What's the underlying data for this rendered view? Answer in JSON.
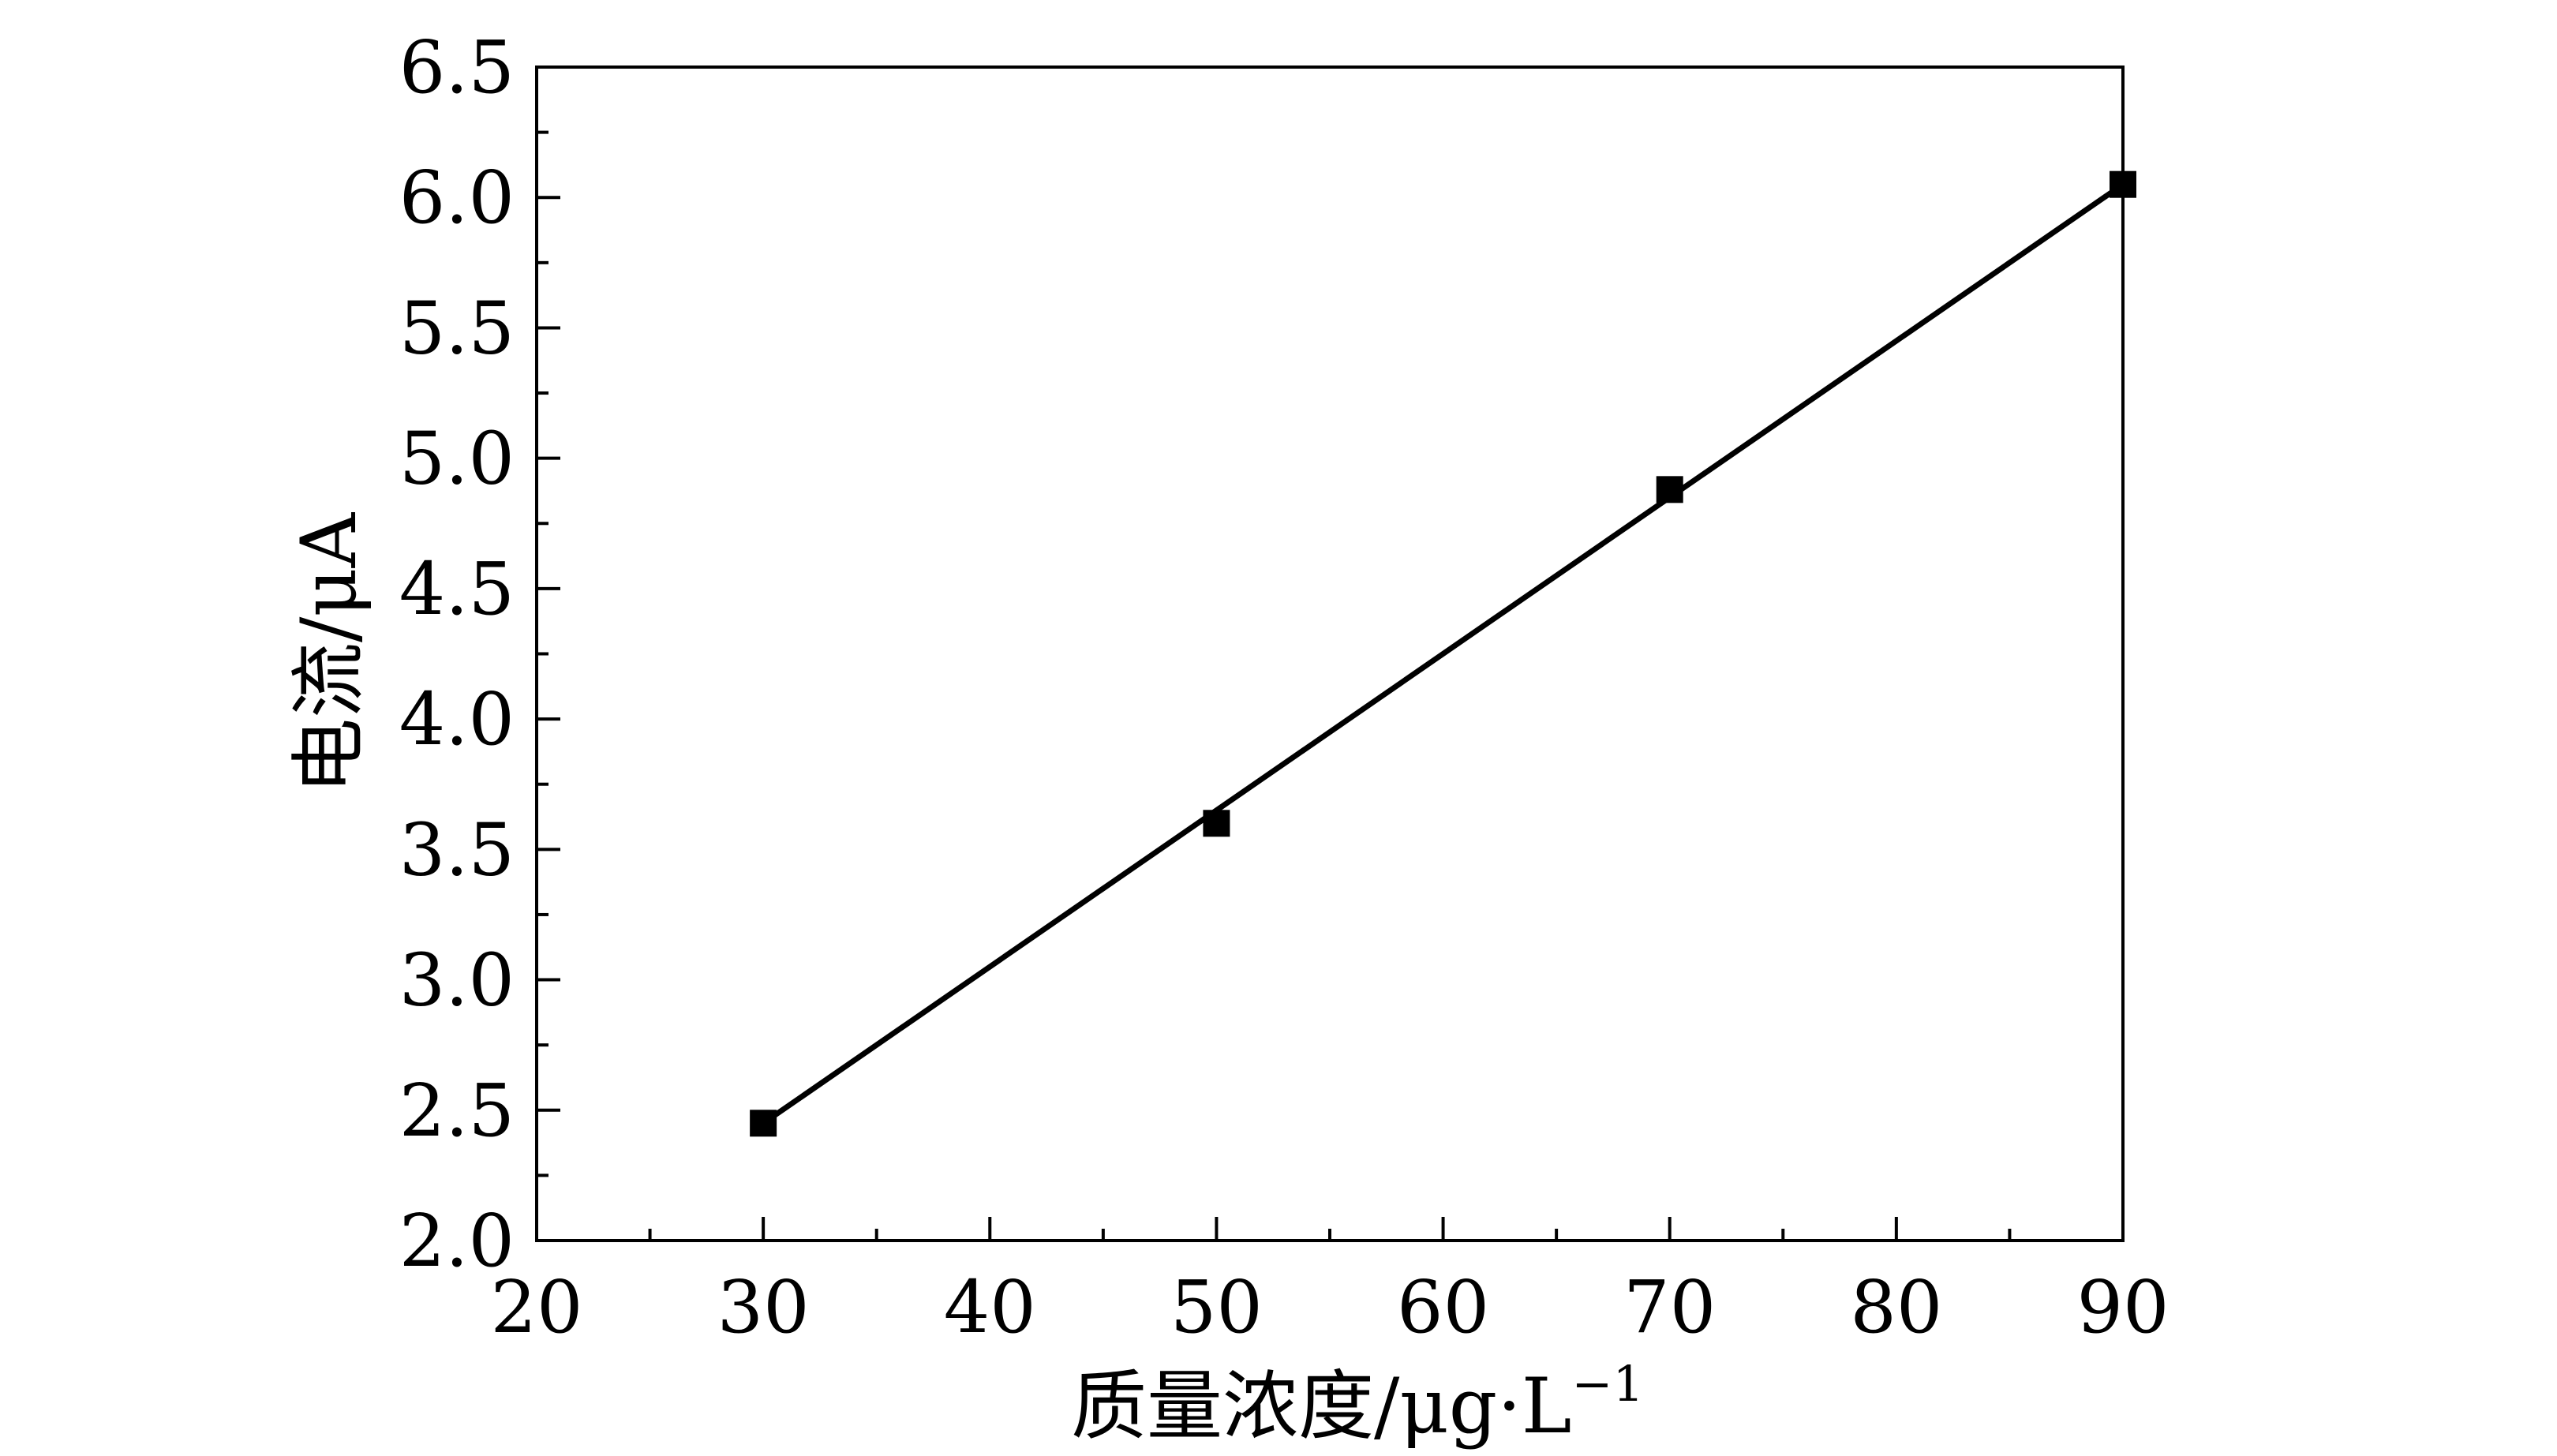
{
  "chart_data": {
    "type": "line",
    "title": "",
    "xlabel": "质量浓度/μg·L",
    "xlabel_superscript": "−1",
    "ylabel": "电流/μA",
    "xlim": [
      20,
      90
    ],
    "ylim": [
      2.0,
      6.5
    ],
    "x_ticks": [
      "20",
      "30",
      "40",
      "50",
      "60",
      "70",
      "80",
      "90"
    ],
    "y_ticks": [
      "2.0",
      "2.5",
      "3.0",
      "3.5",
      "4.0",
      "4.5",
      "5.0",
      "5.5",
      "6.0",
      "6.5"
    ],
    "grid": false,
    "legend": "none",
    "series": [
      {
        "marker": "square",
        "color": "#000000",
        "x": [
          30,
          50,
          70,
          90
        ],
        "y": [
          2.45,
          3.6,
          4.88,
          6.05
        ]
      }
    ],
    "fit_line": {
      "color": "#000000",
      "x": [
        30,
        90
      ],
      "y": [
        2.45,
        6.05
      ]
    }
  }
}
